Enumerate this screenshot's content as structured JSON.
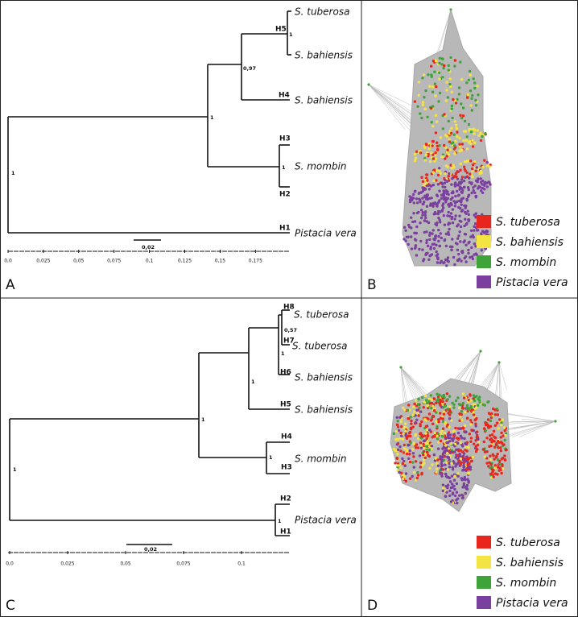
{
  "panels": {
    "A": {
      "label": "A",
      "taxa": [
        "S. tuberosa",
        "S. bahiensis",
        "S. bahiensis",
        "S. mombin",
        "Pistacia vera"
      ],
      "haplotypes": [
        "H5",
        "H4",
        "H3",
        "H2",
        "H1"
      ],
      "supports": [
        "1",
        "0,97",
        "1",
        "1",
        "1"
      ],
      "axis_ticks": [
        "0,0",
        "0,025",
        "0,05",
        "0,075",
        "0,1",
        "0,125",
        "0,15",
        "0,175"
      ],
      "scale_bar": "0,02"
    },
    "B": {
      "label": "B",
      "legend": [
        "S. tuberosa",
        "S. bahiensis",
        "S. mombin",
        "Pistacia vera"
      ]
    },
    "C": {
      "label": "C",
      "taxa": [
        "S. tuberosa",
        "S. tuberosa",
        "S. bahiensis",
        "S. bahiensis",
        "S. mombin",
        "Pistacia vera"
      ],
      "haplotypes": [
        "H8",
        "H7",
        "H6",
        "H5",
        "H4",
        "H3",
        "H2",
        "H1"
      ],
      "supports": [
        "1",
        "1",
        "1",
        "1",
        "0,57",
        "1",
        "1"
      ],
      "axis_ticks": [
        "0,0",
        "0,025",
        "0,05",
        "0,075",
        "0,1"
      ],
      "scale_bar": "0,02"
    },
    "D": {
      "label": "D",
      "legend": [
        "S. tuberosa",
        "S. bahiensis",
        "S. mombin",
        "Pistacia vera"
      ]
    }
  }
}
